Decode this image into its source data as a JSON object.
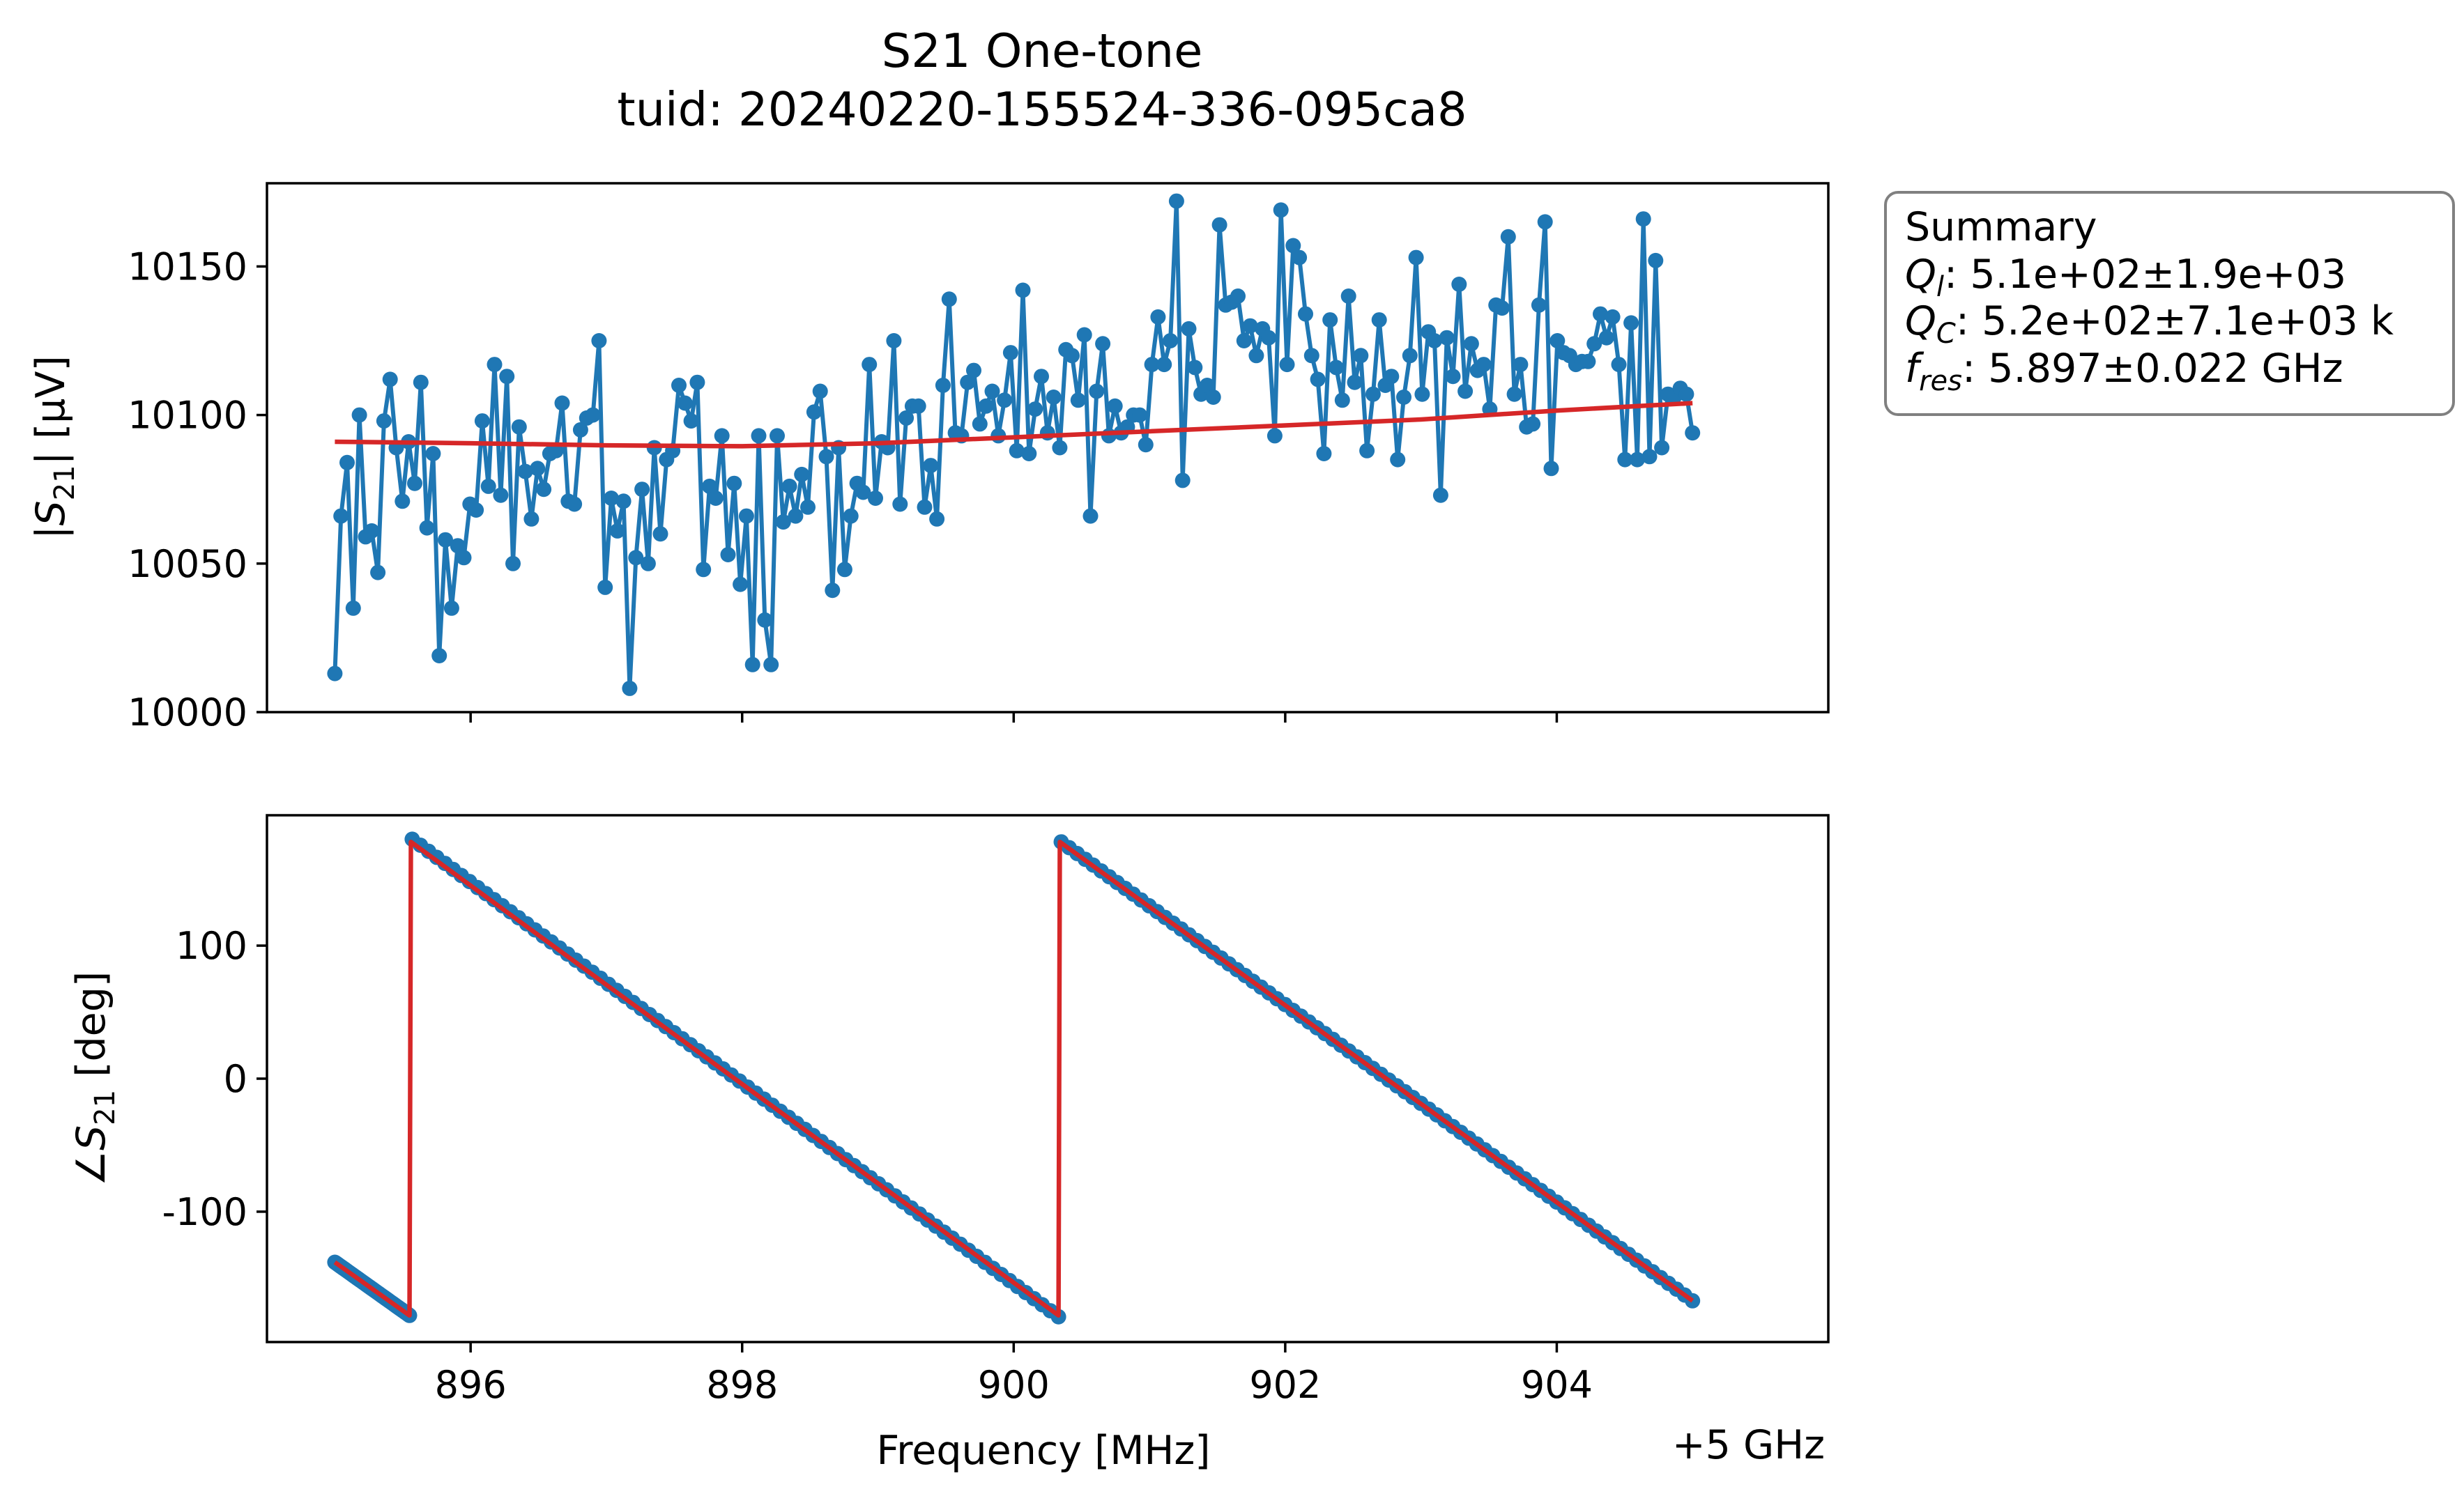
{
  "chart_data": {
    "title": [
      "S21 One-tone",
      "tuid: 20240220-155524-336-095ca8"
    ],
    "panels": [
      {
        "type": "line",
        "ylabel": "|S21| [µV]",
        "ylim": [
          10000,
          10178
        ],
        "yticks": [
          10000,
          10050,
          10100,
          10150
        ],
        "grid": false,
        "xlim": [
          894.5,
          906.0
        ],
        "series": [
          {
            "color": "#1f77b4",
            "marker": "circle",
            "x_start": 895.0,
            "x_end": 905.0,
            "y": [
              10013,
              10066,
              10084,
              10035,
              10100,
              10059,
              10061,
              10047,
              10098,
              10112,
              10089,
              10071,
              10091,
              10077,
              10111,
              10062,
              10087,
              10019,
              10058,
              10035,
              10056,
              10052,
              10070,
              10068,
              10098,
              10076,
              10117,
              10073,
              10113,
              10050,
              10096,
              10081,
              10065,
              10082,
              10075,
              10087,
              10088,
              10104,
              10071,
              10070,
              10095,
              10099,
              10100,
              10125,
              10042,
              10072,
              10061,
              10071,
              10008,
              10052,
              10075,
              10050,
              10089,
              10060,
              10085,
              10088,
              10110,
              10104,
              10098,
              10111,
              10048,
              10076,
              10072,
              10093,
              10053,
              10077,
              10043,
              10066,
              10016,
              10093,
              10031,
              10016,
              10093,
              10064,
              10076,
              10066,
              10080,
              10069,
              10101,
              10108,
              10086,
              10041,
              10089,
              10048,
              10066,
              10077,
              10074,
              10117,
              10072,
              10091,
              10089,
              10125,
              10070,
              10099,
              10103,
              10103,
              10069,
              10083,
              10065,
              10110,
              10139,
              10094,
              10093,
              10111,
              10115,
              10097,
              10103,
              10108,
              10093,
              10105,
              10121,
              10088,
              10142,
              10087,
              10102,
              10113,
              10094,
              10106,
              10089,
              10122,
              10120,
              10105,
              10127,
              10066,
              10108,
              10124,
              10093,
              10103,
              10094,
              10096,
              10100,
              10100,
              10090,
              10117,
              10133,
              10117,
              10125,
              10172,
              10078,
              10129,
              10116,
              10107,
              10110,
              10106,
              10164,
              10137,
              10138,
              10140,
              10125,
              10130,
              10120,
              10129,
              10126,
              10093,
              10169,
              10117,
              10157,
              10153,
              10134,
              10120,
              10112,
              10087,
              10132,
              10116,
              10105,
              10140,
              10111,
              10120,
              10088,
              10107,
              10132,
              10110,
              10113,
              10085,
              10106,
              10120,
              10153,
              10107,
              10128,
              10125,
              10073,
              10126,
              10113,
              10144,
              10108,
              10124,
              10115,
              10117,
              10102,
              10137,
              10136,
              10160,
              10107,
              10117,
              10096,
              10097,
              10137,
              10165,
              10082,
              10125,
              10121,
              10120,
              10117,
              10118,
              10118,
              10124,
              10134,
              10126,
              10133,
              10117,
              10085,
              10131,
              10085,
              10166,
              10086,
              10152,
              10089,
              10107,
              10106,
              10109,
              10107,
              10094
            ]
          },
          {
            "color": "#d62728",
            "marker": "none",
            "x": [
              895.0,
              896.0,
              897.0,
              898.0,
              899.0,
              900.0,
              901.0,
              902.0,
              903.0,
              904.0,
              905.0
            ],
            "y": [
              10091,
              10090.5,
              10089.8,
              10089.5,
              10090.5,
              10092.5,
              10094.5,
              10096.5,
              10098.5,
              10101.5,
              10104
            ]
          }
        ]
      },
      {
        "type": "line",
        "ylabel": "∠S21 [deg]",
        "ylim": [
          -198,
          198
        ],
        "yticks": [
          -100,
          0,
          100
        ],
        "grid": false,
        "xlim": [
          894.5,
          906.0
        ],
        "xlabel": "Frequency [MHz]",
        "xticks": [
          896,
          898,
          900,
          902,
          904
        ],
        "x_offset_label": "+5 GHz",
        "series": [
          {
            "color": "#1f77b4",
            "marker": "circle",
            "segments": [
              {
                "x": [
                  895.0,
                  895.55
                ],
                "y": [
                  -138,
                  -178
                ]
              },
              {
                "x": [
                  895.57,
                  900.33
                ],
                "y": [
                  180,
                  -179
                ]
              },
              {
                "x": [
                  900.35,
                  905.0
                ],
                "y": [
                  178,
                  -167
                ]
              }
            ]
          },
          {
            "color": "#d62728",
            "marker": "none",
            "x": [
              895.0,
              895.55,
              895.56,
              900.33,
              900.34,
              905.0
            ],
            "y": [
              -138,
              -178,
              178,
              -178,
              178,
              -167
            ]
          }
        ]
      }
    ],
    "annotation": {
      "heading": "Summary",
      "lines": [
        {
          "symbol": "Q",
          "sub": "l",
          "value": ": 5.1e+02±1.9e+03"
        },
        {
          "symbol": "Q",
          "sub": "C",
          "value": ": 5.2e+02±7.1e+03 k"
        },
        {
          "symbol": "f",
          "sub": "res",
          "value": ": 5.897±0.022 GHz"
        }
      ]
    }
  }
}
